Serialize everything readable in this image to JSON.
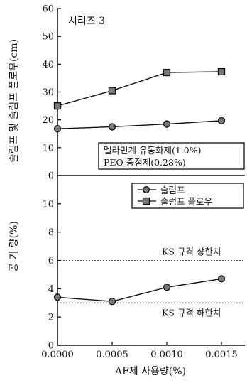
{
  "chart_data": [
    {
      "type": "line",
      "panel": "upper",
      "series_label": "시리즈 3",
      "ylabel": "슬럼프 및 슬럼프 플로우(cm)",
      "ylim": [
        0,
        60
      ],
      "yticks": [
        0,
        10,
        20,
        30,
        40,
        50,
        60
      ],
      "x": [
        0.0,
        0.0005,
        0.001,
        0.0015
      ],
      "series": [
        {
          "name": "슬럼프 플로우",
          "marker": "square",
          "values": [
            25,
            30.5,
            37,
            37.3
          ]
        },
        {
          "name": "슬럼프",
          "marker": "circle",
          "values": [
            16.8,
            17.5,
            18.5,
            19.7
          ]
        }
      ],
      "annotation_lines": [
        "멜라민계 유동화제(1.0%)",
        "PEO 증점제(0.28%)"
      ]
    },
    {
      "type": "line",
      "panel": "lower",
      "ylabel": "공 기 량(%)",
      "ylim": [
        0,
        12
      ],
      "yticks": [
        0,
        2,
        4,
        6,
        8,
        10
      ],
      "xlabel": "AF제 사용량(%)",
      "xticks": [
        "0.0000",
        "0.0005",
        "0.0010",
        "0.0015"
      ],
      "x": [
        0.0,
        0.0005,
        0.001,
        0.0015
      ],
      "series": [
        {
          "marker": "circle",
          "values": [
            3.4,
            3.1,
            4.1,
            4.7
          ]
        }
      ],
      "reference_lines": [
        {
          "label": "KS 규격 상한치",
          "value": 6
        },
        {
          "label": "KS 규격 하한치",
          "value": 3
        }
      ],
      "legend": [
        {
          "label": "슬럼프",
          "marker": "circle"
        },
        {
          "label": "슬럼프 플로우",
          "marker": "square"
        }
      ]
    }
  ]
}
